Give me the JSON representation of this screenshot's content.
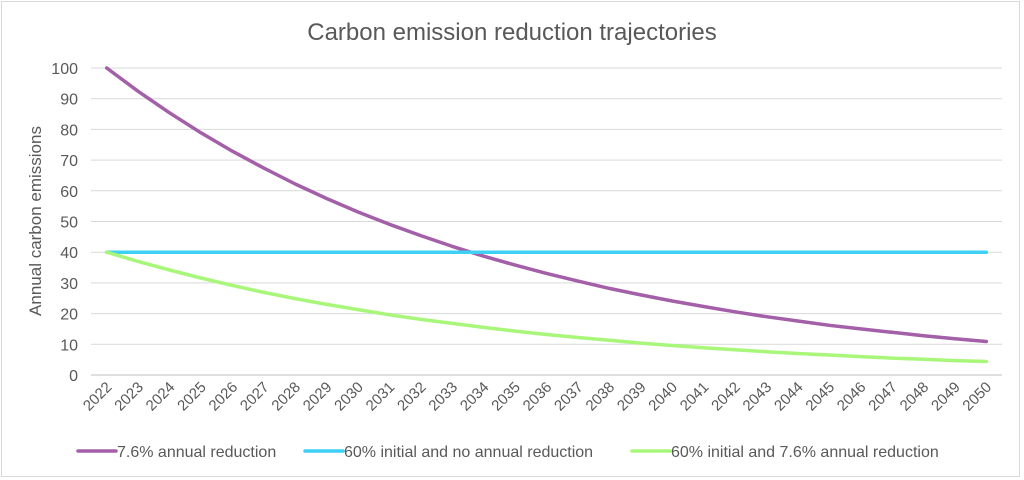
{
  "chart_data": {
    "type": "line",
    "title": "Carbon emission reduction trajectories",
    "ylabel": "Annual carbon emissions",
    "xlabel": "",
    "ylim": [
      0,
      100
    ],
    "yticks": [
      0,
      10,
      20,
      30,
      40,
      50,
      60,
      70,
      80,
      90,
      100
    ],
    "grid": true,
    "legend_position": "bottom",
    "categories": [
      "2022",
      "2023",
      "2024",
      "2025",
      "2026",
      "2027",
      "2028",
      "2029",
      "2030",
      "2031",
      "2032",
      "2033",
      "2034",
      "2035",
      "2036",
      "2037",
      "2038",
      "2039",
      "2040",
      "2041",
      "2042",
      "2043",
      "2044",
      "2045",
      "2046",
      "2047",
      "2048",
      "2049",
      "2050"
    ],
    "series": [
      {
        "name": "7.6% annual reduction",
        "color": "#a35fa8",
        "values": [
          100,
          92.4,
          85.4,
          78.9,
          72.9,
          67.4,
          62.2,
          57.5,
          53.1,
          49.1,
          45.4,
          41.9,
          38.7,
          35.8,
          33.1,
          30.6,
          28.2,
          26.1,
          24.1,
          22.3,
          20.6,
          19.0,
          17.6,
          16.2,
          15.0,
          13.9,
          12.8,
          11.8,
          10.9
        ]
      },
      {
        "name": "60% initial and no annual reduction",
        "color": "#3fd0f5",
        "values": [
          40,
          40,
          40,
          40,
          40,
          40,
          40,
          40,
          40,
          40,
          40,
          40,
          40,
          40,
          40,
          40,
          40,
          40,
          40,
          40,
          40,
          40,
          40,
          40,
          40,
          40,
          40,
          40,
          40
        ]
      },
      {
        "name": "60% initial and 7.6% annual reduction",
        "color": "#a8f77a",
        "values": [
          40,
          37.0,
          34.2,
          31.6,
          29.2,
          26.9,
          24.9,
          23.0,
          21.3,
          19.6,
          18.1,
          16.8,
          15.5,
          14.3,
          13.2,
          12.2,
          11.3,
          10.4,
          9.6,
          8.9,
          8.2,
          7.6,
          7.0,
          6.5,
          6.0,
          5.5,
          5.1,
          4.7,
          4.4
        ]
      }
    ]
  }
}
